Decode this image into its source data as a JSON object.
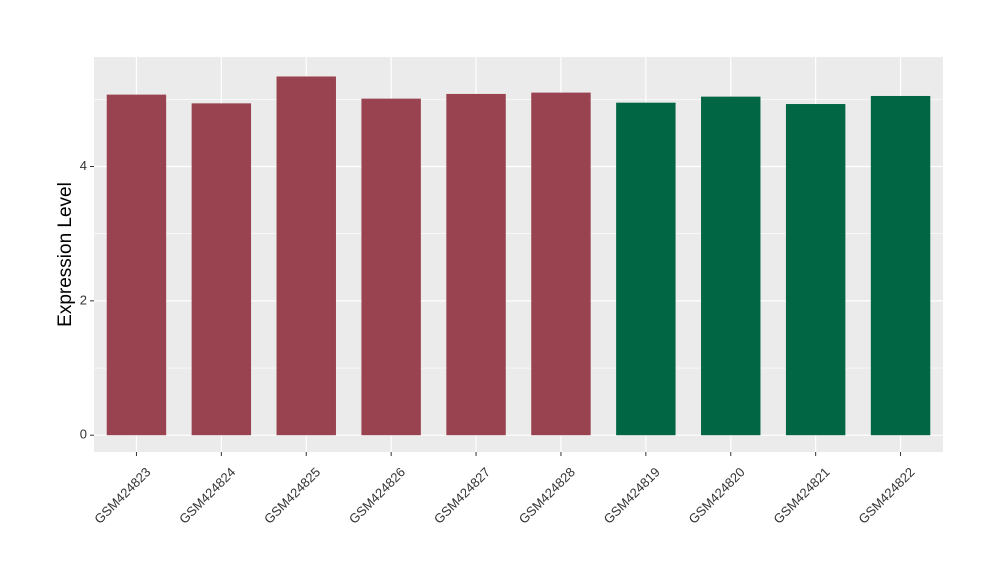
{
  "chart_data": {
    "type": "bar",
    "title": "",
    "xlabel": "",
    "ylabel": "Expression Level",
    "ylim": [
      -0.25,
      5.63
    ],
    "yticks": [
      0,
      2,
      4
    ],
    "grid": true,
    "legend": "none",
    "categories": [
      "GSM424823",
      "GSM424824",
      "GSM424825",
      "GSM424826",
      "GSM424827",
      "GSM424828",
      "GSM424819",
      "GSM424820",
      "GSM424821",
      "GSM424822"
    ],
    "values": [
      5.07,
      4.94,
      5.34,
      5.01,
      5.08,
      5.1,
      4.95,
      5.04,
      4.93,
      5.05
    ],
    "colors": [
      "#9a4350",
      "#9a4350",
      "#9a4350",
      "#9a4350",
      "#9a4350",
      "#9a4350",
      "#006643",
      "#006643",
      "#006643",
      "#006643"
    ],
    "panel_color": "#ebebeb",
    "grid_color": "#ffffff"
  }
}
